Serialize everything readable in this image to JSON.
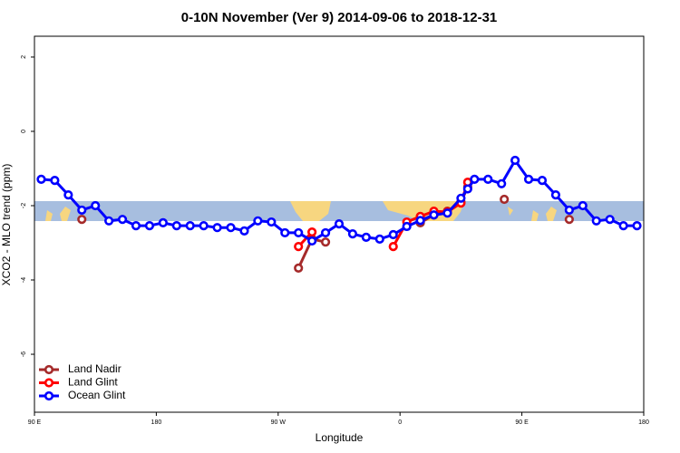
{
  "chart_data": {
    "type": "line",
    "title": "0-10N November (Ver 9)   2014-09-06 to 2018-12-31",
    "x_label": "Longitude",
    "y_label": "XCO2 - MLO trend (ppm)",
    "xlim": [
      90,
      540
    ],
    "xticks": [
      {
        "value": 90,
        "label": "90 E"
      },
      180,
      {
        "value": 270,
        "label": "90 W"
      },
      {
        "value": 360,
        "label": "0"
      },
      {
        "value": 450,
        "label": "90 E"
      },
      {
        "value": 540,
        "label": "180"
      }
    ],
    "ylim": [
      -7.56,
      2.56
    ],
    "yticks": [
      -6,
      -4,
      -2,
      0,
      2
    ],
    "legend": "bottom-left",
    "series": [
      {
        "name": "Land Nadir",
        "color": "#a52a2a",
        "x": [
          125,
          205,
          285,
          295,
          305,
          340,
          375,
          385,
          395,
          405,
          410,
          425,
          437,
          460,
          485
        ],
        "values": [
          -2.37,
          null,
          -3.68,
          -2.9,
          -2.98,
          null,
          -2.46,
          -2.25,
          -2.15,
          -1.9,
          -1.5,
          null,
          -1.83,
          null,
          -2.37
        ]
      },
      {
        "name": "Land Glint",
        "color": "#ff0000",
        "x": [
          285,
          295,
          325,
          355,
          365,
          375,
          385,
          395,
          405,
          410
        ],
        "values": [
          -3.1,
          -2.71,
          null,
          -3.1,
          -2.44,
          -2.29,
          -2.15,
          -2.17,
          -1.93,
          -1.37
        ]
      },
      {
        "name": "Ocean Glint",
        "color": "#0000ff",
        "x": [
          95,
          105,
          115,
          125,
          135,
          145,
          155,
          165,
          175,
          185,
          195,
          205,
          215,
          225,
          235,
          245,
          255,
          265,
          275,
          285,
          295,
          305,
          315,
          325,
          335,
          345,
          355,
          365,
          375,
          385,
          395,
          405,
          410,
          415,
          425,
          435,
          445,
          455,
          465,
          475,
          485,
          495,
          505,
          515,
          525,
          535
        ],
        "values": [
          -1.29,
          -1.32,
          -1.71,
          -2.12,
          -2.0,
          -2.41,
          -2.37,
          -2.54,
          -2.54,
          -2.46,
          -2.54,
          -2.54,
          -2.54,
          -2.59,
          -2.59,
          -2.68,
          -2.41,
          -2.44,
          -2.73,
          -2.73,
          -2.95,
          -2.73,
          -2.49,
          -2.76,
          -2.85,
          -2.9,
          -2.78,
          -2.56,
          -2.4,
          -2.25,
          -2.2,
          -1.8,
          -1.55,
          -1.29,
          -1.29,
          -1.41,
          -0.78,
          -1.29,
          -1.32,
          -1.71,
          -2.12,
          -2.0,
          -2.41,
          -2.37,
          -2.54,
          -2.54
        ]
      }
    ]
  }
}
